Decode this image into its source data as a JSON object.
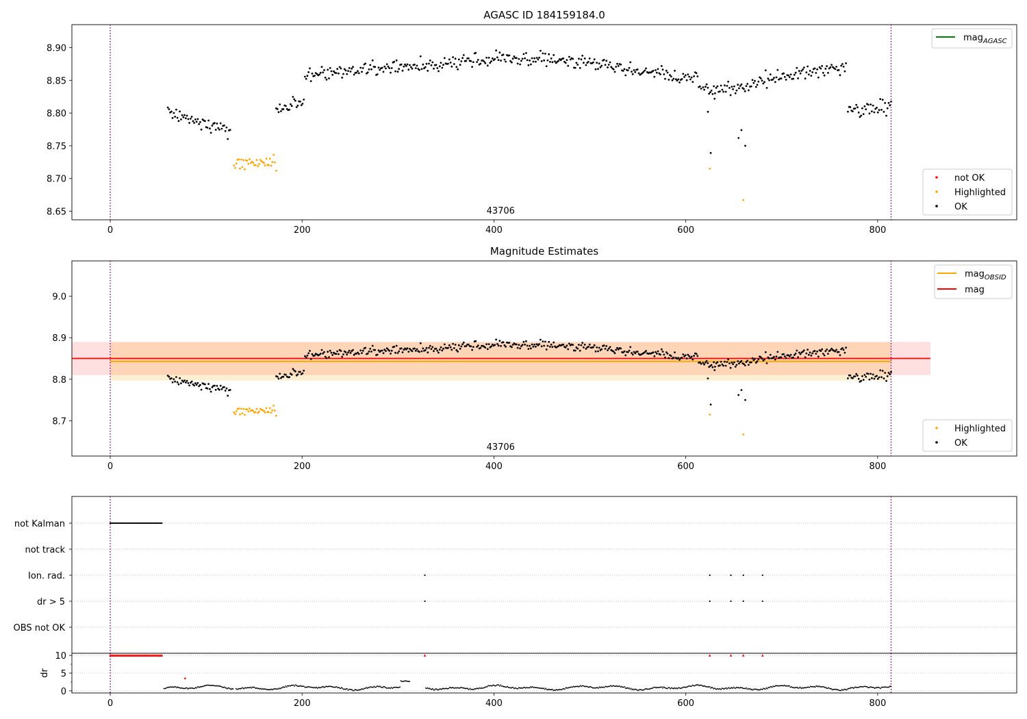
{
  "chart_data": [
    {
      "type": "scatter",
      "title": "AGASC ID 184159184.0",
      "annotation": "43706",
      "xlim": [
        -40,
        945
      ],
      "ylim": [
        8.637,
        8.935
      ],
      "x_ticks": [
        0,
        200,
        400,
        600,
        800
      ],
      "y_ticks": [
        8.65,
        8.7,
        8.75,
        8.8,
        8.85,
        8.9
      ],
      "y_tick_labels": [
        "8.65",
        "8.70",
        "8.75",
        "8.80",
        "8.85",
        "8.90"
      ],
      "vlines": [
        0,
        814
      ],
      "legend_upper": [
        {
          "label": "mag",
          "sub": "AGASC",
          "color": "#008000",
          "kind": "line"
        }
      ],
      "legend_lower": [
        {
          "label": "not OK",
          "color": "#ff0000",
          "kind": "marker"
        },
        {
          "label": "Highlighted",
          "color": "#ffa500",
          "kind": "marker"
        },
        {
          "label": "OK",
          "color": "#000000",
          "kind": "marker"
        }
      ],
      "legend_placement": "upper-right / lower-right",
      "grid": false
    },
    {
      "type": "scatter",
      "title": "Magnitude Estimates",
      "annotation": "43706",
      "xlim": [
        -40,
        945
      ],
      "ylim": [
        8.615,
        9.085
      ],
      "x_ticks": [
        0,
        200,
        400,
        600,
        800
      ],
      "y_ticks": [
        8.7,
        8.8,
        8.9,
        9.0
      ],
      "y_tick_labels": [
        "8.7",
        "8.8",
        "8.9",
        "9.0"
      ],
      "vlines": [
        0,
        814
      ],
      "mag_obsid": {
        "value": 8.843,
        "lo": 8.797,
        "hi": 8.889,
        "x_range": [
          0,
          814
        ],
        "color": "#ffa500"
      },
      "mag": {
        "value": 8.85,
        "lo": 8.81,
        "hi": 8.89,
        "x_range": [
          -40,
          855
        ],
        "color": "#ff0000"
      },
      "legend_upper": [
        {
          "label": "mag",
          "sub": "OBSID",
          "color": "#ffa500",
          "kind": "line"
        },
        {
          "label": "mag",
          "sub": "",
          "color": "#ff0000",
          "kind": "line"
        }
      ],
      "legend_lower": [
        {
          "label": "Highlighted",
          "color": "#ffa500",
          "kind": "marker"
        },
        {
          "label": "OK",
          "color": "#000000",
          "kind": "marker"
        }
      ],
      "grid": false
    },
    {
      "type": "scatter",
      "title": "",
      "xlim": [
        -40,
        945
      ],
      "categories": [
        "not Kalman",
        "not track",
        "Ion. rad.",
        "dr > 5",
        "OBS not OK"
      ],
      "vlines": [
        0,
        814
      ],
      "flags": {
        "not Kalman": {
          "range": [
            0,
            54
          ]
        },
        "not track": {
          "points": []
        },
        "Ion. rad.": {
          "points": [
            328,
            625,
            647,
            660,
            680
          ]
        },
        "dr > 5": {
          "points": [
            328,
            625,
            647,
            660,
            680
          ]
        },
        "OBS not OK": {
          "points": []
        }
      },
      "grid": "horizontal dotted"
    },
    {
      "type": "scatter",
      "title": "",
      "ylabel": "dr",
      "xlim": [
        -40,
        945
      ],
      "ylim": [
        -0.6,
        10.6
      ],
      "x_ticks": [
        0,
        200,
        400,
        600,
        800
      ],
      "y_ticks": [
        0,
        5,
        10
      ],
      "y_tick_labels": [
        "0",
        "5",
        "10"
      ],
      "vlines": [
        0,
        814
      ],
      "clipped_value": 10,
      "clipped_points": {
        "range": [
          0,
          54
        ],
        "extra": [
          328,
          625,
          647,
          660,
          680
        ],
        "color": "#ff0000"
      },
      "outlier": {
        "x": 78,
        "y": 3.5,
        "color": "#ff0000"
      },
      "grid": "horizontal dotted"
    }
  ],
  "series_segments": [
    [
      60,
      126,
      8.8,
      -0.0004,
      8.818,
      66,
      8.812
    ],
    [
      129,
      172,
      8.722,
      0.0001,
      8.728,
      150,
      8.721
    ],
    [
      173,
      202,
      8.808,
      0.0002,
      8.812,
      190,
      8.818
    ],
    [
      203,
      260,
      8.858,
      0.00015,
      8.862,
      230,
      8.855
    ],
    [
      261,
      400,
      8.866,
      0.00011,
      8.878,
      360,
      8.872
    ],
    [
      401,
      520,
      8.888,
      -0.0001,
      8.89,
      460,
      8.884
    ],
    [
      521,
      617,
      8.872,
      -0.00022,
      8.86,
      580,
      8.852
    ],
    [
      618,
      666,
      8.838,
      0,
      8.832,
      655,
      8.795
    ],
    [
      667,
      768,
      8.848,
      0.00022,
      8.862,
      740,
      8.868
    ],
    [
      769,
      814,
      8.802,
      0.0002,
      8.808,
      800,
      8.81
    ]
  ],
  "highlighted_ranges": [
    [
      129,
      172
    ]
  ],
  "highlighted_points": [
    [
      625,
      8.715
    ],
    [
      660,
      8.667
    ],
    [
      173,
      8.712
    ]
  ],
  "dip_points": [
    [
      626,
      8.739
    ],
    [
      655,
      8.762
    ],
    [
      658,
      8.774
    ],
    [
      662,
      8.75
    ],
    [
      630,
      8.822
    ],
    [
      623,
      8.802
    ]
  ]
}
